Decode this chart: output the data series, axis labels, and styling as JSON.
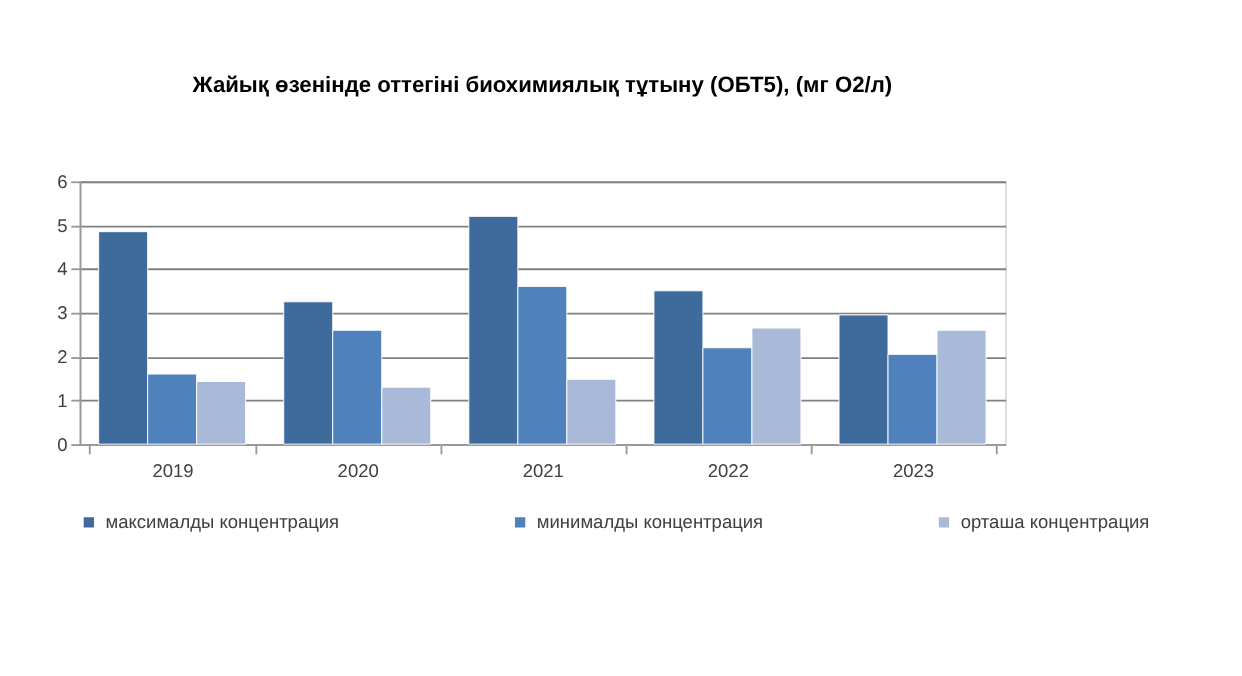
{
  "chart_data": {
    "type": "bar",
    "title": "Жайық өзенінде оттегіні биохимиялық тұтыну (ОБТ5), (мг О2/л)",
    "categories": [
      "2019",
      "2020",
      "2021",
      "2022",
      "2023"
    ],
    "series": [
      {
        "name": "максималды концентрация",
        "color": "#3f6a9c",
        "values": [
          4.85,
          3.25,
          5.2,
          3.5,
          2.95
        ]
      },
      {
        "name": "минималды концентрация",
        "color": "#4f81bd",
        "values": [
          1.6,
          2.6,
          3.6,
          2.2,
          2.05
        ]
      },
      {
        "name": "орташа концентрация",
        "color": "#a9b9d8",
        "values": [
          1.43,
          1.3,
          1.48,
          2.65,
          2.6
        ]
      }
    ],
    "ylim": [
      0,
      6
    ],
    "yticks": [
      0,
      1,
      2,
      3,
      4,
      5,
      6
    ],
    "grid": "y",
    "legend": "bottom"
  }
}
